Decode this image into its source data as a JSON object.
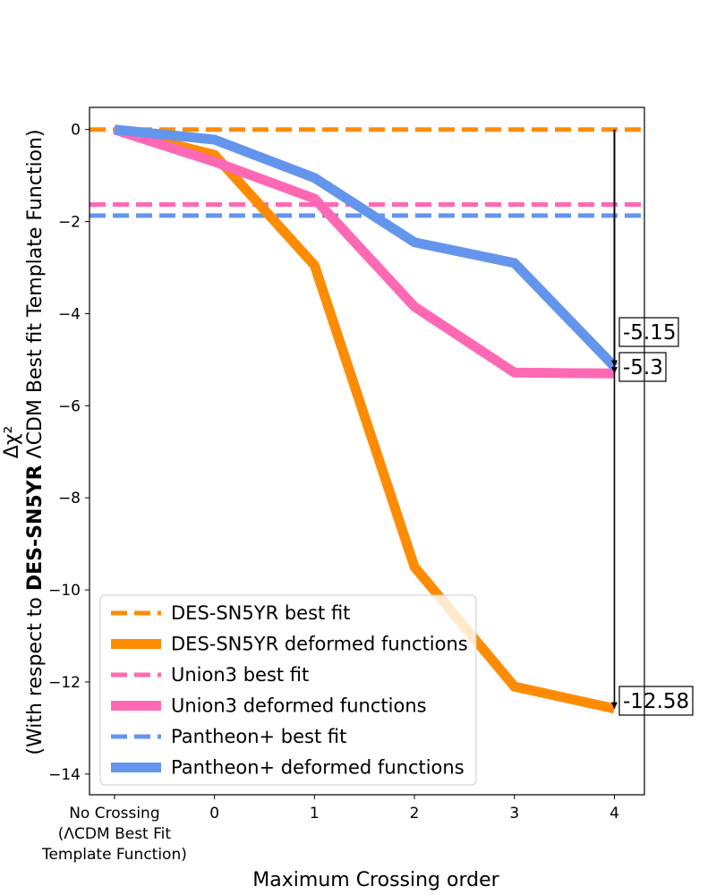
{
  "chart_data": {
    "type": "line",
    "xlabel": "Maximum Crossing order",
    "ylabel": {
      "line1": "Δχ²",
      "prefix": "(With respect to ",
      "bold": "DES-SN5YR",
      "suffix": " ΛCDM Best fit Template Function)"
    },
    "x_ticks": [
      {
        "x": -1,
        "lines": [
          "No Crossing",
          "(ΛCDM Best Fit",
          "Template Function)"
        ]
      },
      {
        "x": 0,
        "lines": [
          "0"
        ]
      },
      {
        "x": 1,
        "lines": [
          "1"
        ]
      },
      {
        "x": 2,
        "lines": [
          "2"
        ]
      },
      {
        "x": 3,
        "lines": [
          "3"
        ]
      },
      {
        "x": 4,
        "lines": [
          "4"
        ]
      }
    ],
    "y_ticks": [
      {
        "value": 0,
        "label": "0"
      },
      {
        "value": -2,
        "label": "−2"
      },
      {
        "value": -4,
        "label": "−4"
      },
      {
        "value": -6,
        "label": "−6"
      },
      {
        "value": -8,
        "label": "−8"
      },
      {
        "value": -10,
        "label": "−10"
      },
      {
        "value": -12,
        "label": "−12"
      },
      {
        "value": -14,
        "label": "−14"
      }
    ],
    "xlim": [
      -1.25,
      4.3
    ],
    "ylim": [
      -14.45,
      0.48
    ],
    "x": [
      -1,
      0,
      1,
      2,
      3,
      4
    ],
    "series": [
      {
        "name": "DES-SN5YR deformed functions",
        "color": "#ff8c00",
        "style": "solid",
        "values": [
          0,
          -0.55,
          -2.95,
          -9.5,
          -12.1,
          -12.58
        ]
      },
      {
        "name": "Union3 deformed functions",
        "color": "#ff69b4",
        "style": "solid",
        "values": [
          0,
          -0.7,
          -1.5,
          -3.85,
          -5.28,
          -5.3
        ]
      },
      {
        "name": "Pantheon+ deformed functions",
        "color": "#6495ed",
        "style": "solid",
        "values": [
          0,
          -0.22,
          -1.05,
          -2.45,
          -2.9,
          -5.15
        ]
      }
    ],
    "hlines": [
      {
        "name": "DES-SN5YR best fit",
        "color": "#ff8c00",
        "value": 0
      },
      {
        "name": "Union3 best fit",
        "color": "#ff69b4",
        "value": -1.63
      },
      {
        "name": "Pantheon+ best fit",
        "color": "#6495ed",
        "value": -1.87
      }
    ],
    "legend": {
      "location": "lower-left",
      "entries": [
        {
          "label": "DES-SN5YR best fit",
          "color": "#ff8c00",
          "style": "dashed"
        },
        {
          "label": "DES-SN5YR deformed functions",
          "color": "#ff8c00",
          "style": "solid"
        },
        {
          "label": "Union3 best fit",
          "color": "#ff69b4",
          "style": "dashed"
        },
        {
          "label": "Union3 deformed functions",
          "color": "#ff69b4",
          "style": "solid"
        },
        {
          "label": "Pantheon+ best fit",
          "color": "#6495ed",
          "style": "dashed"
        },
        {
          "label": "Pantheon+ deformed functions",
          "color": "#6495ed",
          "style": "solid"
        }
      ]
    },
    "annotations": [
      {
        "text": "-5.15",
        "x": 4,
        "y": -5.15,
        "arrow_from_y": 0
      },
      {
        "text": "-5.3",
        "x": 4,
        "y": -5.3,
        "arrow_from_y": 0
      },
      {
        "text": "-12.58",
        "x": 4,
        "y": -12.58,
        "arrow_from_y": 0
      }
    ]
  }
}
